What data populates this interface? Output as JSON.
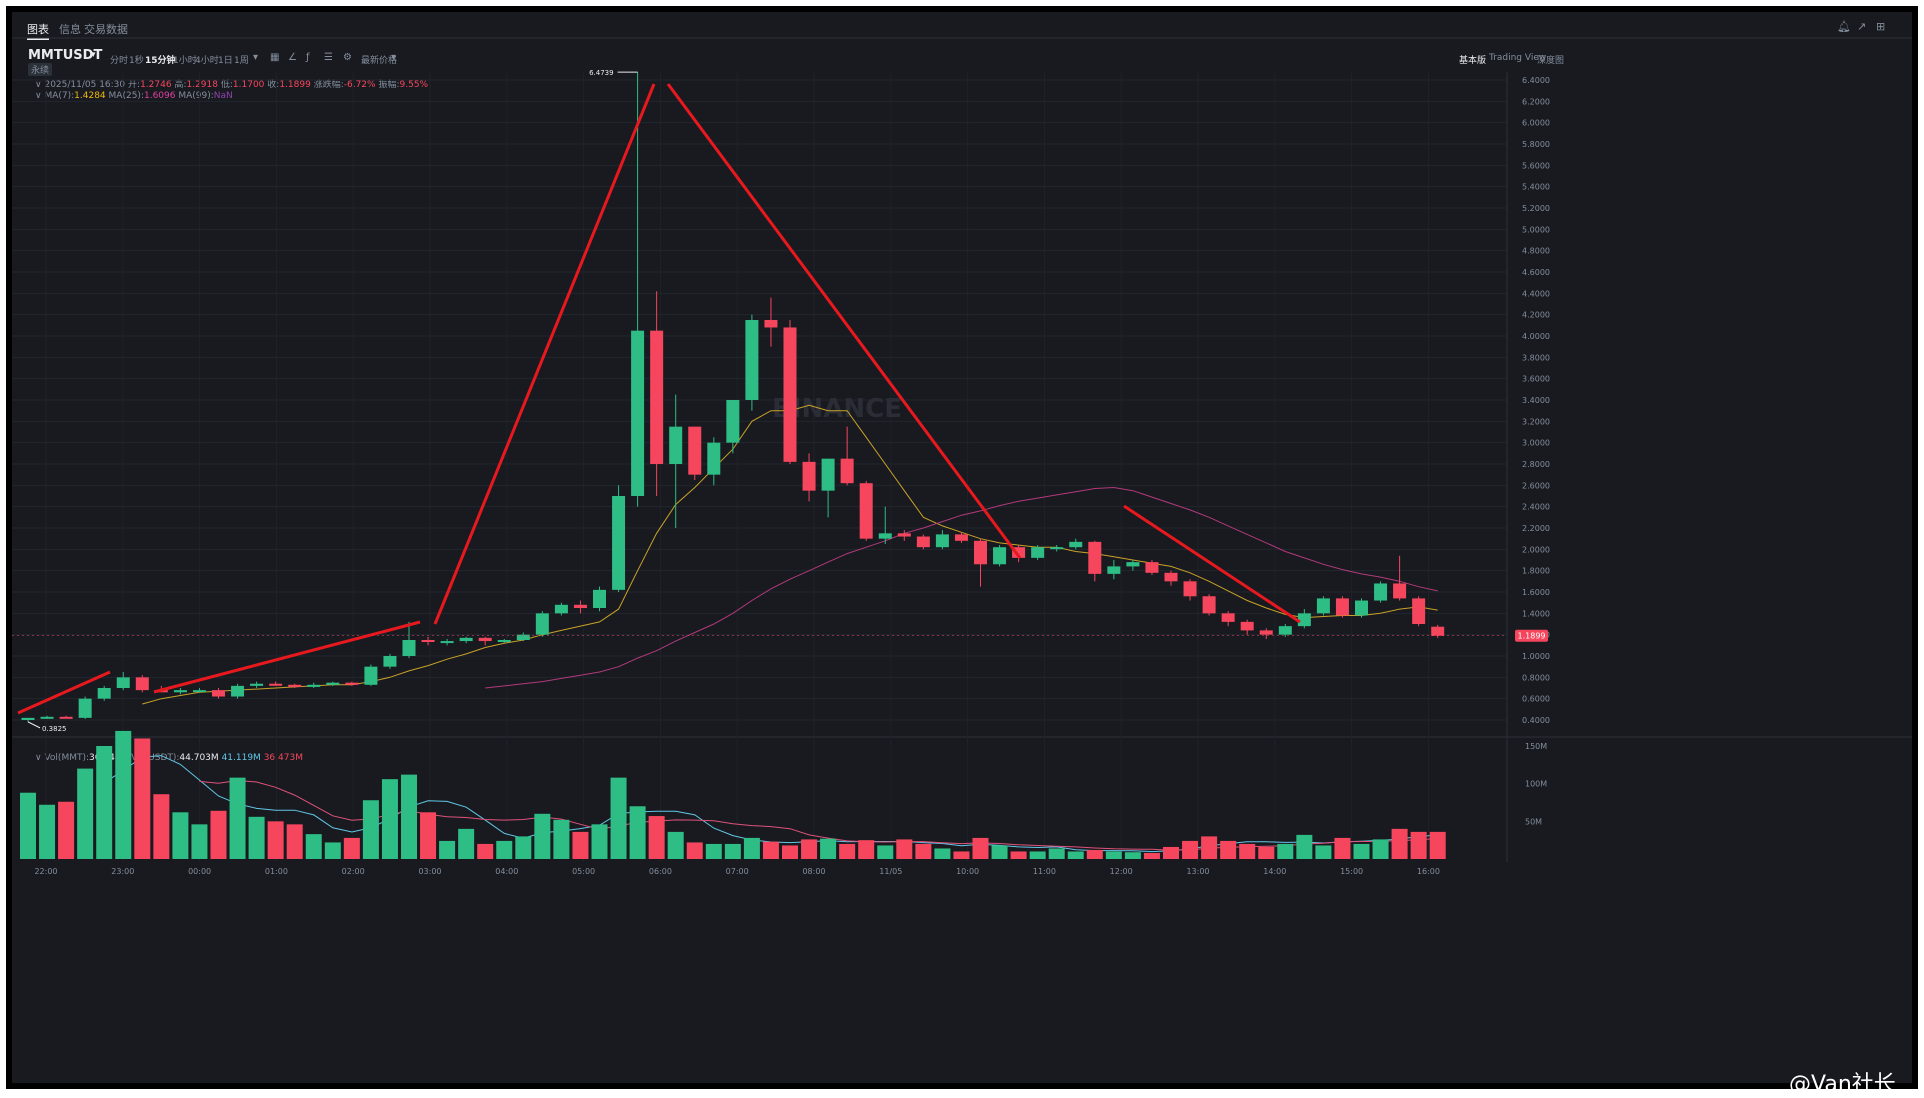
{
  "top_tabs": [
    "图表",
    "信息",
    "交易数据"
  ],
  "symbol": "MMTUSDT",
  "symbol_sub": "永续",
  "intervals": [
    "分时",
    "1秒",
    "15分钟",
    "1小时",
    "4小时",
    "1日",
    "1周"
  ],
  "active_interval": "15分钟",
  "price_type": "最新价格",
  "views": [
    "基本版",
    "Trading View",
    "深度图"
  ],
  "active_view": "基本版",
  "ohlc": {
    "date": "2025/11/05 16:30",
    "open_label": "开:",
    "open": "1.2746",
    "high_label": "高:",
    "high": "1.2918",
    "low_label": "低:",
    "low": "1.1700",
    "close_label": "收:",
    "close": "1.1899",
    "chg_label": "涨跌幅:",
    "chg": "-6.72%",
    "amp_label": "振幅:",
    "amp": "9.55%"
  },
  "ma": {
    "ma7_label": "MA(7):",
    "ma7": "1.4284",
    "ma25_label": "MA(25):",
    "ma25": "1.6096",
    "ma99_label": "MA(99):",
    "ma99": "NaN"
  },
  "vol": {
    "mmt_label": "Vol(MMT):",
    "mmt": "36.341M",
    "usdt_label": "Vol(USDT):",
    "usdt": "44.703M",
    "v1": "41.119M",
    "v2": "36.473M"
  },
  "watermark": "@Van社长",
  "chart_data": {
    "type": "candlestick",
    "x_ticks": [
      "22:00",
      "23:00",
      "00:00",
      "01:00",
      "02:00",
      "03:00",
      "04:00",
      "05:00",
      "06:00",
      "07:00",
      "08:00",
      "11/05",
      "10:00",
      "11:00",
      "12:00",
      "13:00",
      "14:00",
      "15:00",
      "16:00"
    ],
    "y_ticks": [
      "6.4000",
      "6.2000",
      "6.0000",
      "5.8000",
      "5.6000",
      "5.4000",
      "5.2000",
      "5.0000",
      "4.8000",
      "4.6000",
      "4.4000",
      "4.2000",
      "4.0000",
      "3.8000",
      "3.6000",
      "3.4000",
      "3.2000",
      "3.0000",
      "2.8000",
      "2.6000",
      "2.4000",
      "2.2000",
      "2.0000",
      "1.8000",
      "1.6000",
      "1.4000",
      "1.2000",
      "1.0000",
      "0.8000",
      "0.6000",
      "0.4000"
    ],
    "ylim": [
      0.4,
      6.4
    ],
    "vol_ticks": [
      "150M",
      "100M",
      "50M"
    ],
    "vol_ylim": [
      0,
      150
    ],
    "high_label": "6.4739",
    "low_label": "0.3825",
    "current_price": "1.1899",
    "candles": [
      {
        "o": 0.4,
        "h": 0.42,
        "l": 0.3825,
        "c": 0.42,
        "v": 88
      },
      {
        "o": 0.42,
        "h": 0.44,
        "l": 0.41,
        "c": 0.43,
        "v": 72
      },
      {
        "o": 0.43,
        "h": 0.44,
        "l": 0.42,
        "c": 0.42,
        "v": 76
      },
      {
        "o": 0.42,
        "h": 0.62,
        "l": 0.41,
        "c": 0.6,
        "v": 120
      },
      {
        "o": 0.6,
        "h": 0.72,
        "l": 0.58,
        "c": 0.7,
        "v": 150
      },
      {
        "o": 0.7,
        "h": 0.85,
        "l": 0.68,
        "c": 0.8,
        "v": 170
      },
      {
        "o": 0.8,
        "h": 0.82,
        "l": 0.66,
        "c": 0.68,
        "v": 160
      },
      {
        "o": 0.68,
        "h": 0.72,
        "l": 0.66,
        "c": 0.66,
        "v": 86
      },
      {
        "o": 0.66,
        "h": 0.7,
        "l": 0.64,
        "c": 0.68,
        "v": 62
      },
      {
        "o": 0.68,
        "h": 0.7,
        "l": 0.66,
        "c": 0.68,
        "v": 46
      },
      {
        "o": 0.68,
        "h": 0.7,
        "l": 0.6,
        "c": 0.62,
        "v": 64
      },
      {
        "o": 0.62,
        "h": 0.74,
        "l": 0.6,
        "c": 0.72,
        "v": 108
      },
      {
        "o": 0.72,
        "h": 0.76,
        "l": 0.7,
        "c": 0.74,
        "v": 56
      },
      {
        "o": 0.74,
        "h": 0.76,
        "l": 0.72,
        "c": 0.73,
        "v": 50
      },
      {
        "o": 0.73,
        "h": 0.74,
        "l": 0.7,
        "c": 0.71,
        "v": 46
      },
      {
        "o": 0.71,
        "h": 0.75,
        "l": 0.7,
        "c": 0.73,
        "v": 33
      },
      {
        "o": 0.73,
        "h": 0.76,
        "l": 0.72,
        "c": 0.75,
        "v": 22
      },
      {
        "o": 0.75,
        "h": 0.76,
        "l": 0.72,
        "c": 0.73,
        "v": 28
      },
      {
        "o": 0.73,
        "h": 0.92,
        "l": 0.72,
        "c": 0.9,
        "v": 78
      },
      {
        "o": 0.9,
        "h": 1.02,
        "l": 0.88,
        "c": 1.0,
        "v": 106
      },
      {
        "o": 1.0,
        "h": 1.32,
        "l": 0.98,
        "c": 1.15,
        "v": 112
      },
      {
        "o": 1.15,
        "h": 1.18,
        "l": 1.1,
        "c": 1.14,
        "v": 62
      },
      {
        "o": 1.14,
        "h": 1.16,
        "l": 1.1,
        "c": 1.14,
        "v": 24
      },
      {
        "o": 1.14,
        "h": 1.18,
        "l": 1.12,
        "c": 1.17,
        "v": 40
      },
      {
        "o": 1.17,
        "h": 1.18,
        "l": 1.1,
        "c": 1.14,
        "v": 20
      },
      {
        "o": 1.14,
        "h": 1.16,
        "l": 1.12,
        "c": 1.15,
        "v": 24
      },
      {
        "o": 1.15,
        "h": 1.22,
        "l": 1.14,
        "c": 1.2,
        "v": 30
      },
      {
        "o": 1.2,
        "h": 1.42,
        "l": 1.18,
        "c": 1.4,
        "v": 60
      },
      {
        "o": 1.4,
        "h": 1.5,
        "l": 1.38,
        "c": 1.48,
        "v": 52
      },
      {
        "o": 1.48,
        "h": 1.52,
        "l": 1.4,
        "c": 1.45,
        "v": 36
      },
      {
        "o": 1.45,
        "h": 1.65,
        "l": 1.42,
        "c": 1.62,
        "v": 46
      },
      {
        "o": 1.62,
        "h": 2.6,
        "l": 1.6,
        "c": 2.5,
        "v": 108
      },
      {
        "o": 2.5,
        "h": 6.4739,
        "l": 2.4,
        "c": 4.05,
        "v": 70
      },
      {
        "o": 4.05,
        "h": 4.42,
        "l": 2.5,
        "c": 2.8,
        "v": 57
      },
      {
        "o": 2.8,
        "h": 3.45,
        "l": 2.2,
        "c": 3.15,
        "v": 36
      },
      {
        "o": 3.15,
        "h": 3.15,
        "l": 2.65,
        "c": 2.7,
        "v": 22
      },
      {
        "o": 2.7,
        "h": 3.05,
        "l": 2.6,
        "c": 3.0,
        "v": 20
      },
      {
        "o": 3.0,
        "h": 3.4,
        "l": 2.9,
        "c": 3.4,
        "v": 20
      },
      {
        "o": 3.4,
        "h": 4.2,
        "l": 3.3,
        "c": 4.15,
        "v": 28
      },
      {
        "o": 4.15,
        "h": 4.36,
        "l": 3.9,
        "c": 4.08,
        "v": 23
      },
      {
        "o": 4.08,
        "h": 4.15,
        "l": 2.8,
        "c": 2.82,
        "v": 18
      },
      {
        "o": 2.82,
        "h": 2.9,
        "l": 2.45,
        "c": 2.55,
        "v": 26
      },
      {
        "o": 2.55,
        "h": 2.85,
        "l": 2.3,
        "c": 2.85,
        "v": 27
      },
      {
        "o": 2.85,
        "h": 3.15,
        "l": 2.6,
        "c": 2.62,
        "v": 20
      },
      {
        "o": 2.62,
        "h": 2.64,
        "l": 2.08,
        "c": 2.1,
        "v": 25
      },
      {
        "o": 2.1,
        "h": 2.4,
        "l": 2.05,
        "c": 2.15,
        "v": 18
      },
      {
        "o": 2.15,
        "h": 2.18,
        "l": 2.08,
        "c": 2.12,
        "v": 26
      },
      {
        "o": 2.12,
        "h": 2.14,
        "l": 2.0,
        "c": 2.02,
        "v": 20
      },
      {
        "o": 2.02,
        "h": 2.18,
        "l": 2.0,
        "c": 2.14,
        "v": 14
      },
      {
        "o": 2.14,
        "h": 2.16,
        "l": 2.06,
        "c": 2.08,
        "v": 10
      },
      {
        "o": 2.08,
        "h": 2.1,
        "l": 1.65,
        "c": 1.86,
        "v": 28
      },
      {
        "o": 1.86,
        "h": 2.04,
        "l": 1.84,
        "c": 2.02,
        "v": 18
      },
      {
        "o": 2.02,
        "h": 2.04,
        "l": 1.88,
        "c": 1.92,
        "v": 10
      },
      {
        "o": 1.92,
        "h": 2.04,
        "l": 1.9,
        "c": 2.02,
        "v": 10
      },
      {
        "o": 2.02,
        "h": 2.04,
        "l": 1.98,
        "c": 2.02,
        "v": 14
      },
      {
        "o": 2.02,
        "h": 2.1,
        "l": 2.0,
        "c": 2.07,
        "v": 10
      },
      {
        "o": 2.07,
        "h": 2.08,
        "l": 1.7,
        "c": 1.77,
        "v": 12
      },
      {
        "o": 1.77,
        "h": 1.9,
        "l": 1.72,
        "c": 1.84,
        "v": 10
      },
      {
        "o": 1.84,
        "h": 1.9,
        "l": 1.8,
        "c": 1.88,
        "v": 9
      },
      {
        "o": 1.88,
        "h": 1.9,
        "l": 1.76,
        "c": 1.78,
        "v": 8
      },
      {
        "o": 1.78,
        "h": 1.8,
        "l": 1.66,
        "c": 1.7,
        "v": 16
      },
      {
        "o": 1.7,
        "h": 1.72,
        "l": 1.52,
        "c": 1.56,
        "v": 24
      },
      {
        "o": 1.56,
        "h": 1.58,
        "l": 1.38,
        "c": 1.4,
        "v": 30
      },
      {
        "o": 1.4,
        "h": 1.42,
        "l": 1.28,
        "c": 1.32,
        "v": 24
      },
      {
        "o": 1.32,
        "h": 1.34,
        "l": 1.2,
        "c": 1.24,
        "v": 20
      },
      {
        "o": 1.24,
        "h": 1.26,
        "l": 1.16,
        "c": 1.2,
        "v": 16
      },
      {
        "o": 1.2,
        "h": 1.3,
        "l": 1.18,
        "c": 1.28,
        "v": 20
      },
      {
        "o": 1.28,
        "h": 1.44,
        "l": 1.26,
        "c": 1.4,
        "v": 32
      },
      {
        "o": 1.4,
        "h": 1.56,
        "l": 1.38,
        "c": 1.54,
        "v": 18
      },
      {
        "o": 1.54,
        "h": 1.56,
        "l": 1.36,
        "c": 1.38,
        "v": 28
      },
      {
        "o": 1.38,
        "h": 1.54,
        "l": 1.36,
        "c": 1.52,
        "v": 20
      },
      {
        "o": 1.52,
        "h": 1.7,
        "l": 1.5,
        "c": 1.68,
        "v": 26
      },
      {
        "o": 1.68,
        "h": 1.94,
        "l": 1.52,
        "c": 1.54,
        "v": 40
      },
      {
        "o": 1.54,
        "h": 1.56,
        "l": 1.28,
        "c": 1.3,
        "v": 36
      },
      {
        "o": 1.2746,
        "h": 1.2918,
        "l": 1.17,
        "c": 1.1899,
        "v": 36
      }
    ],
    "ma7": [
      null,
      null,
      null,
      null,
      null,
      null,
      0.55,
      0.6,
      0.63,
      0.66,
      0.67,
      0.68,
      0.69,
      0.7,
      0.71,
      0.72,
      0.73,
      0.73,
      0.76,
      0.8,
      0.86,
      0.91,
      0.97,
      1.02,
      1.08,
      1.12,
      1.15,
      1.2,
      1.24,
      1.28,
      1.32,
      1.44,
      1.8,
      2.15,
      2.42,
      2.58,
      2.76,
      2.94,
      3.2,
      3.3,
      3.3,
      3.35,
      3.3,
      3.3,
      3.05,
      2.8,
      2.55,
      2.3,
      2.22,
      2.16,
      2.1,
      2.06,
      2.04,
      2.02,
      2.02,
      1.98,
      1.96,
      1.93,
      1.9,
      1.87,
      1.84,
      1.78,
      1.7,
      1.61,
      1.52,
      1.45,
      1.39,
      1.36,
      1.37,
      1.38,
      1.38,
      1.4,
      1.44,
      1.46,
      1.43
    ],
    "ma25": [
      null,
      null,
      null,
      null,
      null,
      null,
      null,
      null,
      null,
      null,
      null,
      null,
      null,
      null,
      null,
      null,
      null,
      null,
      null,
      null,
      null,
      null,
      null,
      null,
      0.7,
      0.72,
      0.74,
      0.76,
      0.79,
      0.82,
      0.85,
      0.9,
      0.98,
      1.05,
      1.14,
      1.22,
      1.3,
      1.4,
      1.52,
      1.63,
      1.72,
      1.8,
      1.88,
      1.96,
      2.02,
      2.08,
      2.15,
      2.2,
      2.26,
      2.32,
      2.36,
      2.41,
      2.45,
      2.48,
      2.51,
      2.54,
      2.57,
      2.58,
      2.55,
      2.49,
      2.43,
      2.37,
      2.3,
      2.22,
      2.14,
      2.06,
      1.98,
      1.92,
      1.86,
      1.81,
      1.77,
      1.74,
      1.7,
      1.65,
      1.61
    ]
  }
}
